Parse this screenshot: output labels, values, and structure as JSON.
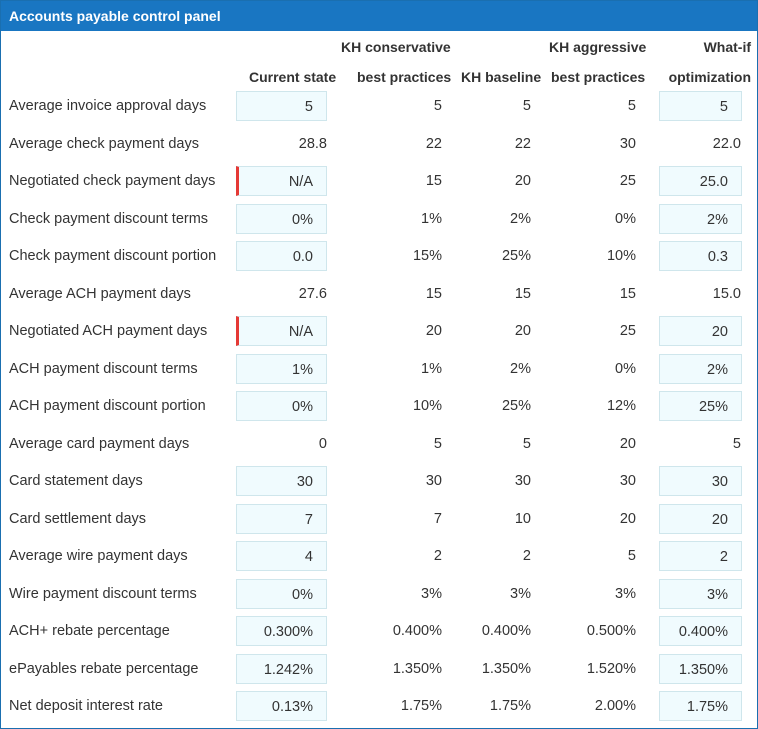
{
  "panel": {
    "title": "Accounts payable control panel"
  },
  "columns": {
    "current": [
      "Current state"
    ],
    "conservative": [
      "KH conservative",
      "best practices"
    ],
    "baseline": [
      "KH baseline"
    ],
    "aggressive": [
      "KH aggressive",
      "best practices"
    ],
    "whatif": [
      "What-if",
      "optimization"
    ]
  },
  "rows": [
    {
      "label": "Average invoice approval days",
      "current": "5",
      "current_input": true,
      "current_error": false,
      "conservative": "5",
      "baseline": "5",
      "aggressive": "5",
      "whatif": "5",
      "whatif_input": true
    },
    {
      "label": "Average check payment days",
      "current": "28.8",
      "current_input": false,
      "current_error": false,
      "conservative": "22",
      "baseline": "22",
      "aggressive": "30",
      "whatif": "22.0",
      "whatif_input": false
    },
    {
      "label": "Negotiated check payment days",
      "current": "N/A",
      "current_input": true,
      "current_error": true,
      "conservative": "15",
      "baseline": "20",
      "aggressive": "25",
      "whatif": "25.0",
      "whatif_input": true
    },
    {
      "label": "Check payment discount terms",
      "current": "0%",
      "current_input": true,
      "current_error": false,
      "conservative": "1%",
      "baseline": "2%",
      "aggressive": "0%",
      "whatif": "2%",
      "whatif_input": true
    },
    {
      "label": "Check payment discount portion",
      "current": "0.0",
      "current_input": true,
      "current_error": false,
      "conservative": "15%",
      "baseline": "25%",
      "aggressive": "10%",
      "whatif": "0.3",
      "whatif_input": true
    },
    {
      "label": "Average ACH payment days",
      "current": "27.6",
      "current_input": false,
      "current_error": false,
      "conservative": "15",
      "baseline": "15",
      "aggressive": "15",
      "whatif": "15.0",
      "whatif_input": false
    },
    {
      "label": "Negotiated ACH payment days",
      "current": "N/A",
      "current_input": true,
      "current_error": true,
      "conservative": "20",
      "baseline": "20",
      "aggressive": "25",
      "whatif": "20",
      "whatif_input": true
    },
    {
      "label": "ACH payment discount terms",
      "current": "1%",
      "current_input": true,
      "current_error": false,
      "conservative": "1%",
      "baseline": "2%",
      "aggressive": "0%",
      "whatif": "2%",
      "whatif_input": true
    },
    {
      "label": "ACH payment discount portion",
      "current": "0%",
      "current_input": true,
      "current_error": false,
      "conservative": "10%",
      "baseline": "25%",
      "aggressive": "12%",
      "whatif": "25%",
      "whatif_input": true
    },
    {
      "label": "Average card payment days",
      "current": "0",
      "current_input": false,
      "current_error": false,
      "conservative": "5",
      "baseline": "5",
      "aggressive": "20",
      "whatif": "5",
      "whatif_input": false
    },
    {
      "label": "Card statement days",
      "current": "30",
      "current_input": true,
      "current_error": false,
      "conservative": "30",
      "baseline": "30",
      "aggressive": "30",
      "whatif": "30",
      "whatif_input": true
    },
    {
      "label": "Card settlement days",
      "current": "7",
      "current_input": true,
      "current_error": false,
      "conservative": "7",
      "baseline": "10",
      "aggressive": "20",
      "whatif": "20",
      "whatif_input": true
    },
    {
      "label": "Average wire payment days",
      "current": "4",
      "current_input": true,
      "current_error": false,
      "conservative": "2",
      "baseline": "2",
      "aggressive": "5",
      "whatif": "2",
      "whatif_input": true
    },
    {
      "label": "Wire payment discount terms",
      "current": "0%",
      "current_input": true,
      "current_error": false,
      "conservative": "3%",
      "baseline": "3%",
      "aggressive": "3%",
      "whatif": "3%",
      "whatif_input": true
    },
    {
      "label": "ACH+ rebate percentage",
      "current": "0.300%",
      "current_input": true,
      "current_error": false,
      "conservative": "0.400%",
      "baseline": "0.400%",
      "aggressive": "0.500%",
      "whatif": "0.400%",
      "whatif_input": true
    },
    {
      "label": "ePayables rebate percentage",
      "current": "1.242%",
      "current_input": true,
      "current_error": false,
      "conservative": "1.350%",
      "baseline": "1.350%",
      "aggressive": "1.520%",
      "whatif": "1.350%",
      "whatif_input": true
    },
    {
      "label": "Net deposit interest rate",
      "current": "0.13%",
      "current_input": true,
      "current_error": false,
      "conservative": "1.75%",
      "baseline": "1.75%",
      "aggressive": "2.00%",
      "whatif": "1.75%",
      "whatif_input": true
    }
  ]
}
